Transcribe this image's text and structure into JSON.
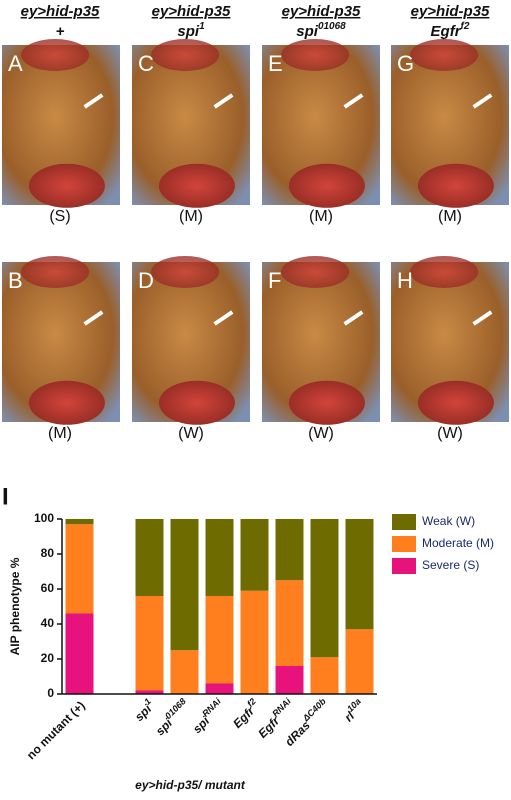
{
  "headers": [
    {
      "line1": "ey>hid-p35",
      "allele": "+"
    },
    {
      "line1": "ey>hid-p35",
      "allele": "spi",
      "allele_sup": "1"
    },
    {
      "line1": "ey>hid-p35",
      "allele": "spi",
      "allele_sup": "01068"
    },
    {
      "line1": "ey>hid-p35",
      "allele": "Egfr",
      "allele_sup": "f2"
    }
  ],
  "panels": [
    {
      "letter": "A",
      "phenotype": "(S)"
    },
    {
      "letter": "C",
      "phenotype": "(M)"
    },
    {
      "letter": "E",
      "phenotype": "(M)"
    },
    {
      "letter": "G",
      "phenotype": "(M)"
    },
    {
      "letter": "B",
      "phenotype": "(M)"
    },
    {
      "letter": "D",
      "phenotype": "(W)"
    },
    {
      "letter": "F",
      "phenotype": "(W)"
    },
    {
      "letter": "H",
      "phenotype": "(W)"
    }
  ],
  "chart_data": {
    "type": "stacked-bar",
    "panel_letter": "I",
    "y_label": "AIP phenotype %",
    "x_label": "ey>hid-p35/ mutant",
    "categories": [
      "no mutant (+)",
      null,
      "spi",
      "spi",
      "spi",
      "Egfr",
      "Egfr",
      "dRas",
      "rl"
    ],
    "category_superscripts": [
      null,
      null,
      "1",
      "01068",
      "RNAi",
      "f2",
      "RNAi",
      "ΔC40b",
      "10a"
    ],
    "series": [
      {
        "name": "Severe (S)",
        "color": "#e8127c",
        "values": [
          46,
          null,
          2,
          0,
          6,
          0,
          16,
          0,
          0
        ]
      },
      {
        "name": "Moderate (M)",
        "color": "#ff7f1e",
        "values": [
          51,
          null,
          54,
          25,
          50,
          59,
          49,
          21,
          37
        ]
      },
      {
        "name": "Weak (W)",
        "color": "#6e6c00",
        "values": [
          3,
          null,
          44,
          75,
          44,
          41,
          35,
          79,
          63
        ]
      }
    ],
    "ylim": [
      0,
      100
    ],
    "yticks": [
      0,
      20,
      40,
      60,
      80,
      100
    ],
    "legend": "right"
  }
}
